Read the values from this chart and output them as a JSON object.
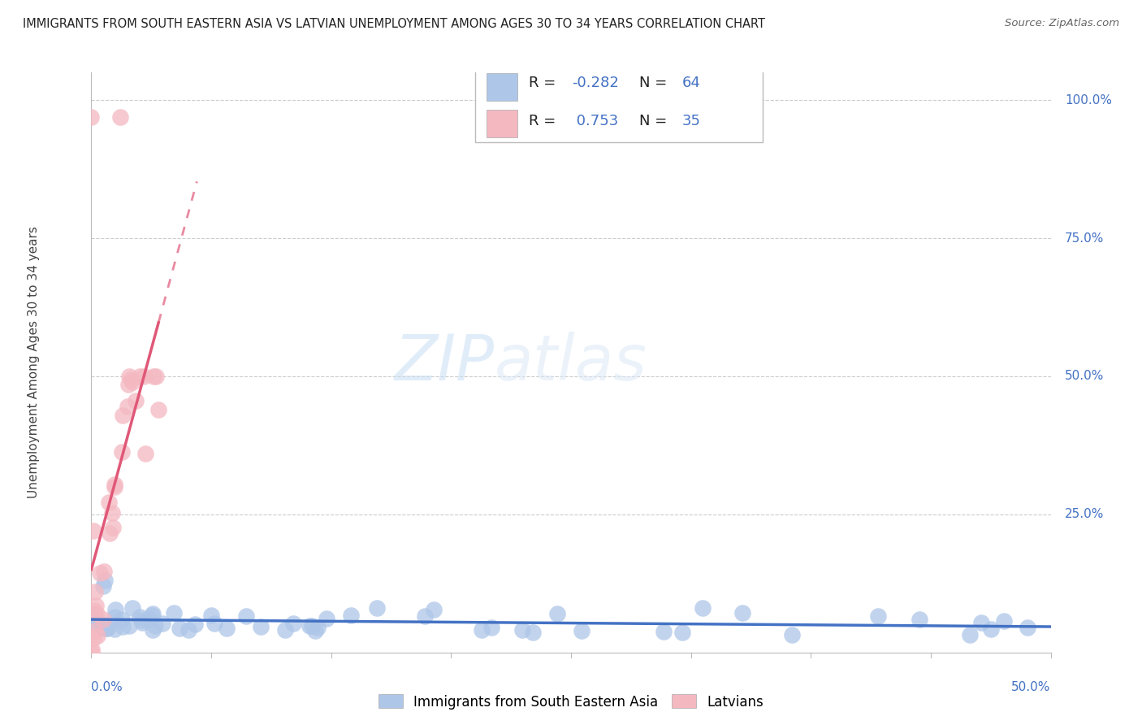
{
  "title": "IMMIGRANTS FROM SOUTH EASTERN ASIA VS LATVIAN UNEMPLOYMENT AMONG AGES 30 TO 34 YEARS CORRELATION CHART",
  "source": "Source: ZipAtlas.com",
  "ylabel": "Unemployment Among Ages 30 to 34 years",
  "right_yticks": [
    "100.0%",
    "75.0%",
    "50.0%",
    "25.0%"
  ],
  "right_ytick_vals": [
    1.0,
    0.75,
    0.5,
    0.25
  ],
  "watermark_zip": "ZIP",
  "watermark_atlas": "atlas",
  "legend1_r": "-0.282",
  "legend1_n": "64",
  "legend2_r": "0.753",
  "legend2_n": "35",
  "blue_scatter_color": "#aec6e8",
  "pink_scatter_color": "#f4b8c1",
  "blue_line_color": "#4472c4",
  "pink_line_color": "#e05878",
  "background_color": "#ffffff",
  "grid_color": "#cccccc",
  "title_color": "#222222",
  "source_color": "#666666",
  "axis_label_color": "#4472c4",
  "ylabel_color": "#444444",
  "legend_border_color": "#bbbbbb",
  "title_fontsize": 10.5,
  "source_fontsize": 9.5,
  "tick_fontsize": 11,
  "ylabel_fontsize": 11,
  "legend_fontsize": 13
}
